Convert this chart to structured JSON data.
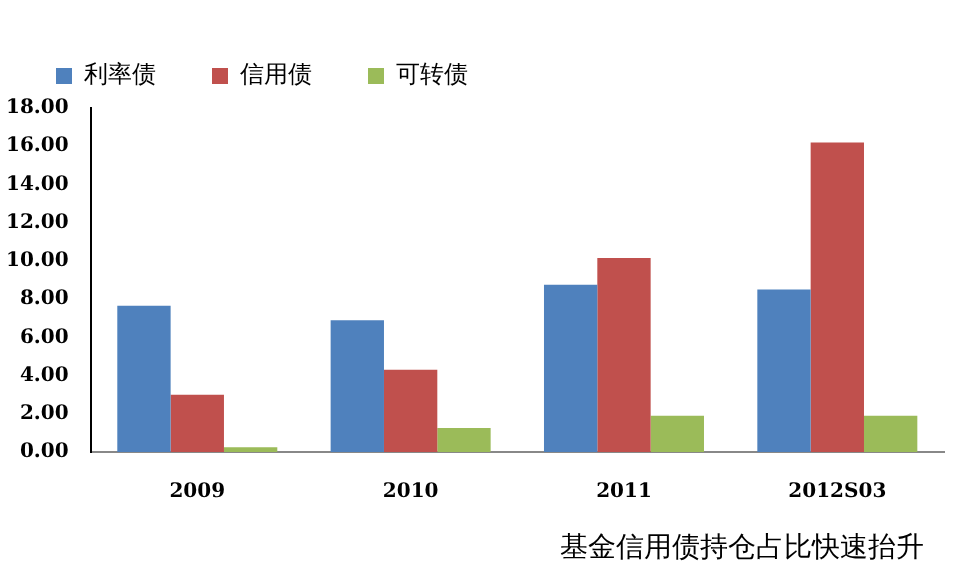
{
  "chart_data": {
    "type": "bar",
    "categories": [
      "2009",
      "2010",
      "2011",
      "2012S03"
    ],
    "series": [
      {
        "name": "利率债",
        "color": "#4f81bd",
        "values": [
          7.65,
          6.9,
          8.75,
          8.5
        ]
      },
      {
        "name": "信用债",
        "color": "#c0504d",
        "values": [
          3.0,
          4.3,
          10.15,
          16.2
        ]
      },
      {
        "name": "可转债",
        "color": "#9bbb59",
        "values": [
          0.25,
          1.25,
          1.9,
          1.9
        ]
      }
    ],
    "ylim": [
      0,
      18
    ],
    "yticks": [
      {
        "value": 0,
        "label": "0.00"
      },
      {
        "value": 2,
        "label": "2.00"
      },
      {
        "value": 4,
        "label": "4.00"
      },
      {
        "value": 6,
        "label": "6.00"
      },
      {
        "value": 8,
        "label": "8.00"
      },
      {
        "value": 10,
        "label": "10.00"
      },
      {
        "value": 12,
        "label": "12.00"
      },
      {
        "value": 14,
        "label": "14.00"
      },
      {
        "value": 16,
        "label": "16.00"
      },
      {
        "value": 18,
        "label": "18.00"
      }
    ],
    "grid": false,
    "legend": "top left",
    "annotations": [
      "基金信用债持仓占比快速抬升"
    ]
  }
}
